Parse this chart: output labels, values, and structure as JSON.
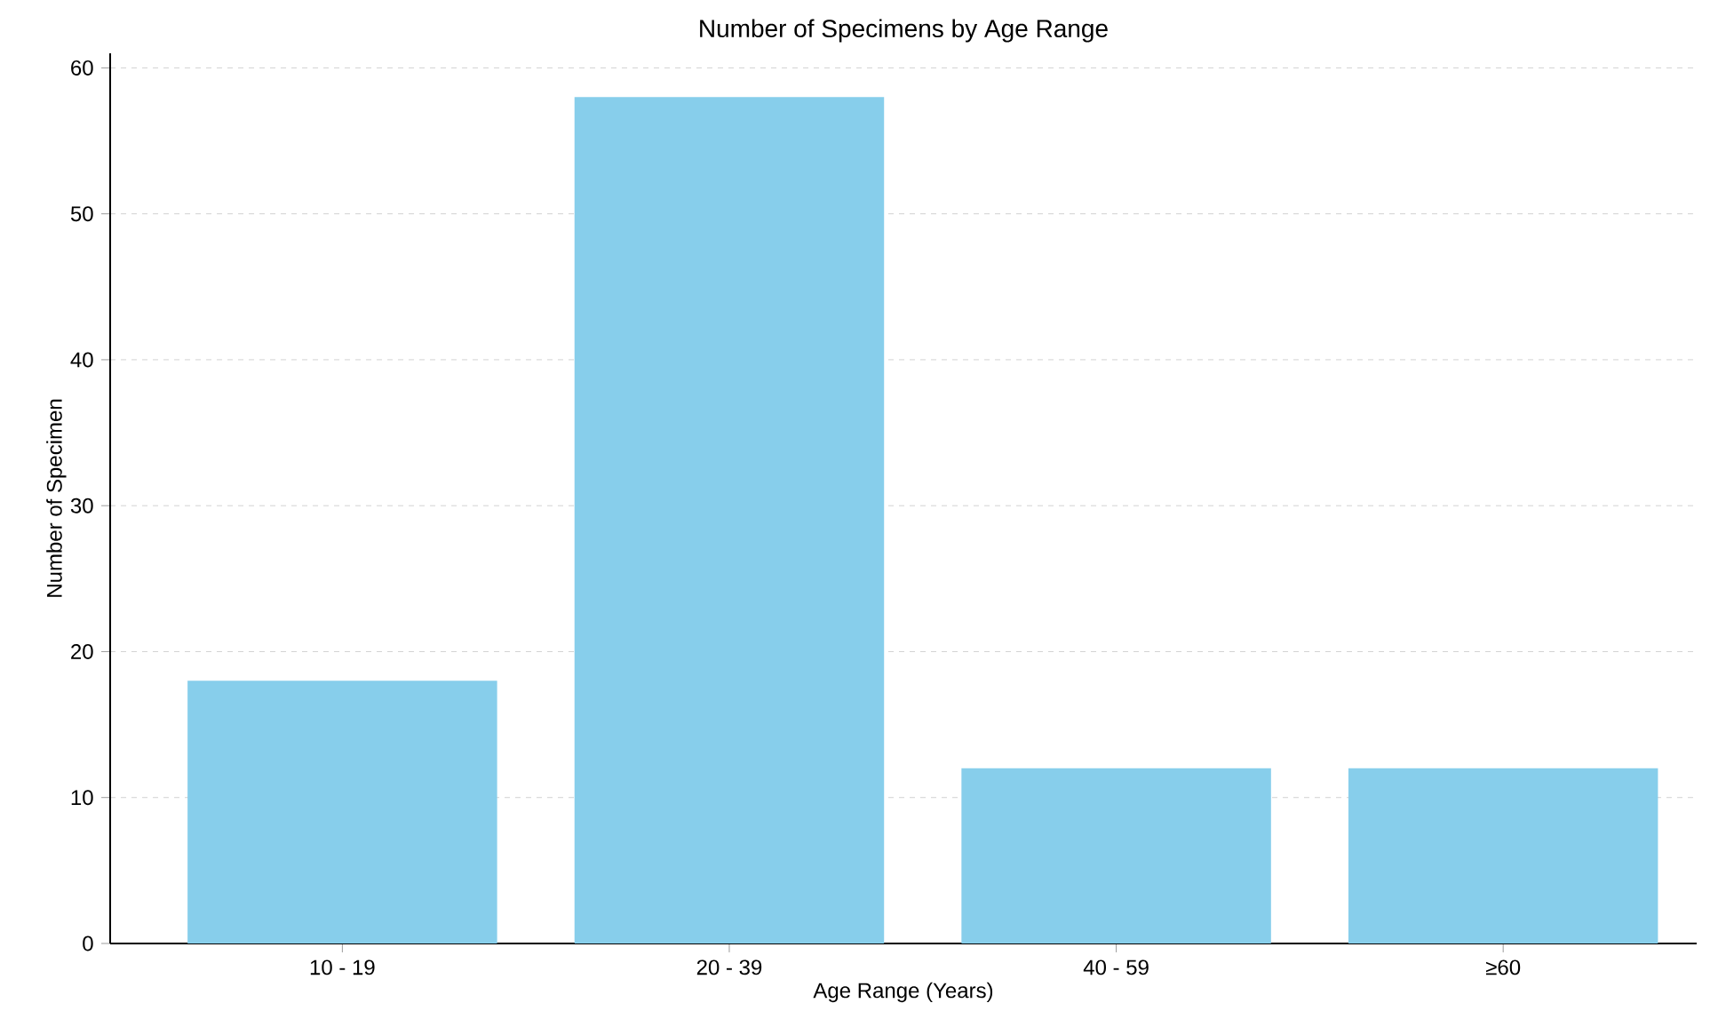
{
  "chart_data": {
    "type": "bar",
    "title": "Number of Specimens by Age Range",
    "xlabel": "Age Range (Years)",
    "ylabel": "Number of Specimen",
    "categories": [
      "10 - 19",
      "20 - 39",
      "40 - 59",
      "≥60"
    ],
    "values": [
      18,
      58,
      12,
      12
    ],
    "color": "#87ceeb",
    "ylim": [
      0,
      61
    ],
    "yticks": [
      0,
      10,
      20,
      30,
      40,
      50,
      60
    ],
    "grid": "y"
  }
}
